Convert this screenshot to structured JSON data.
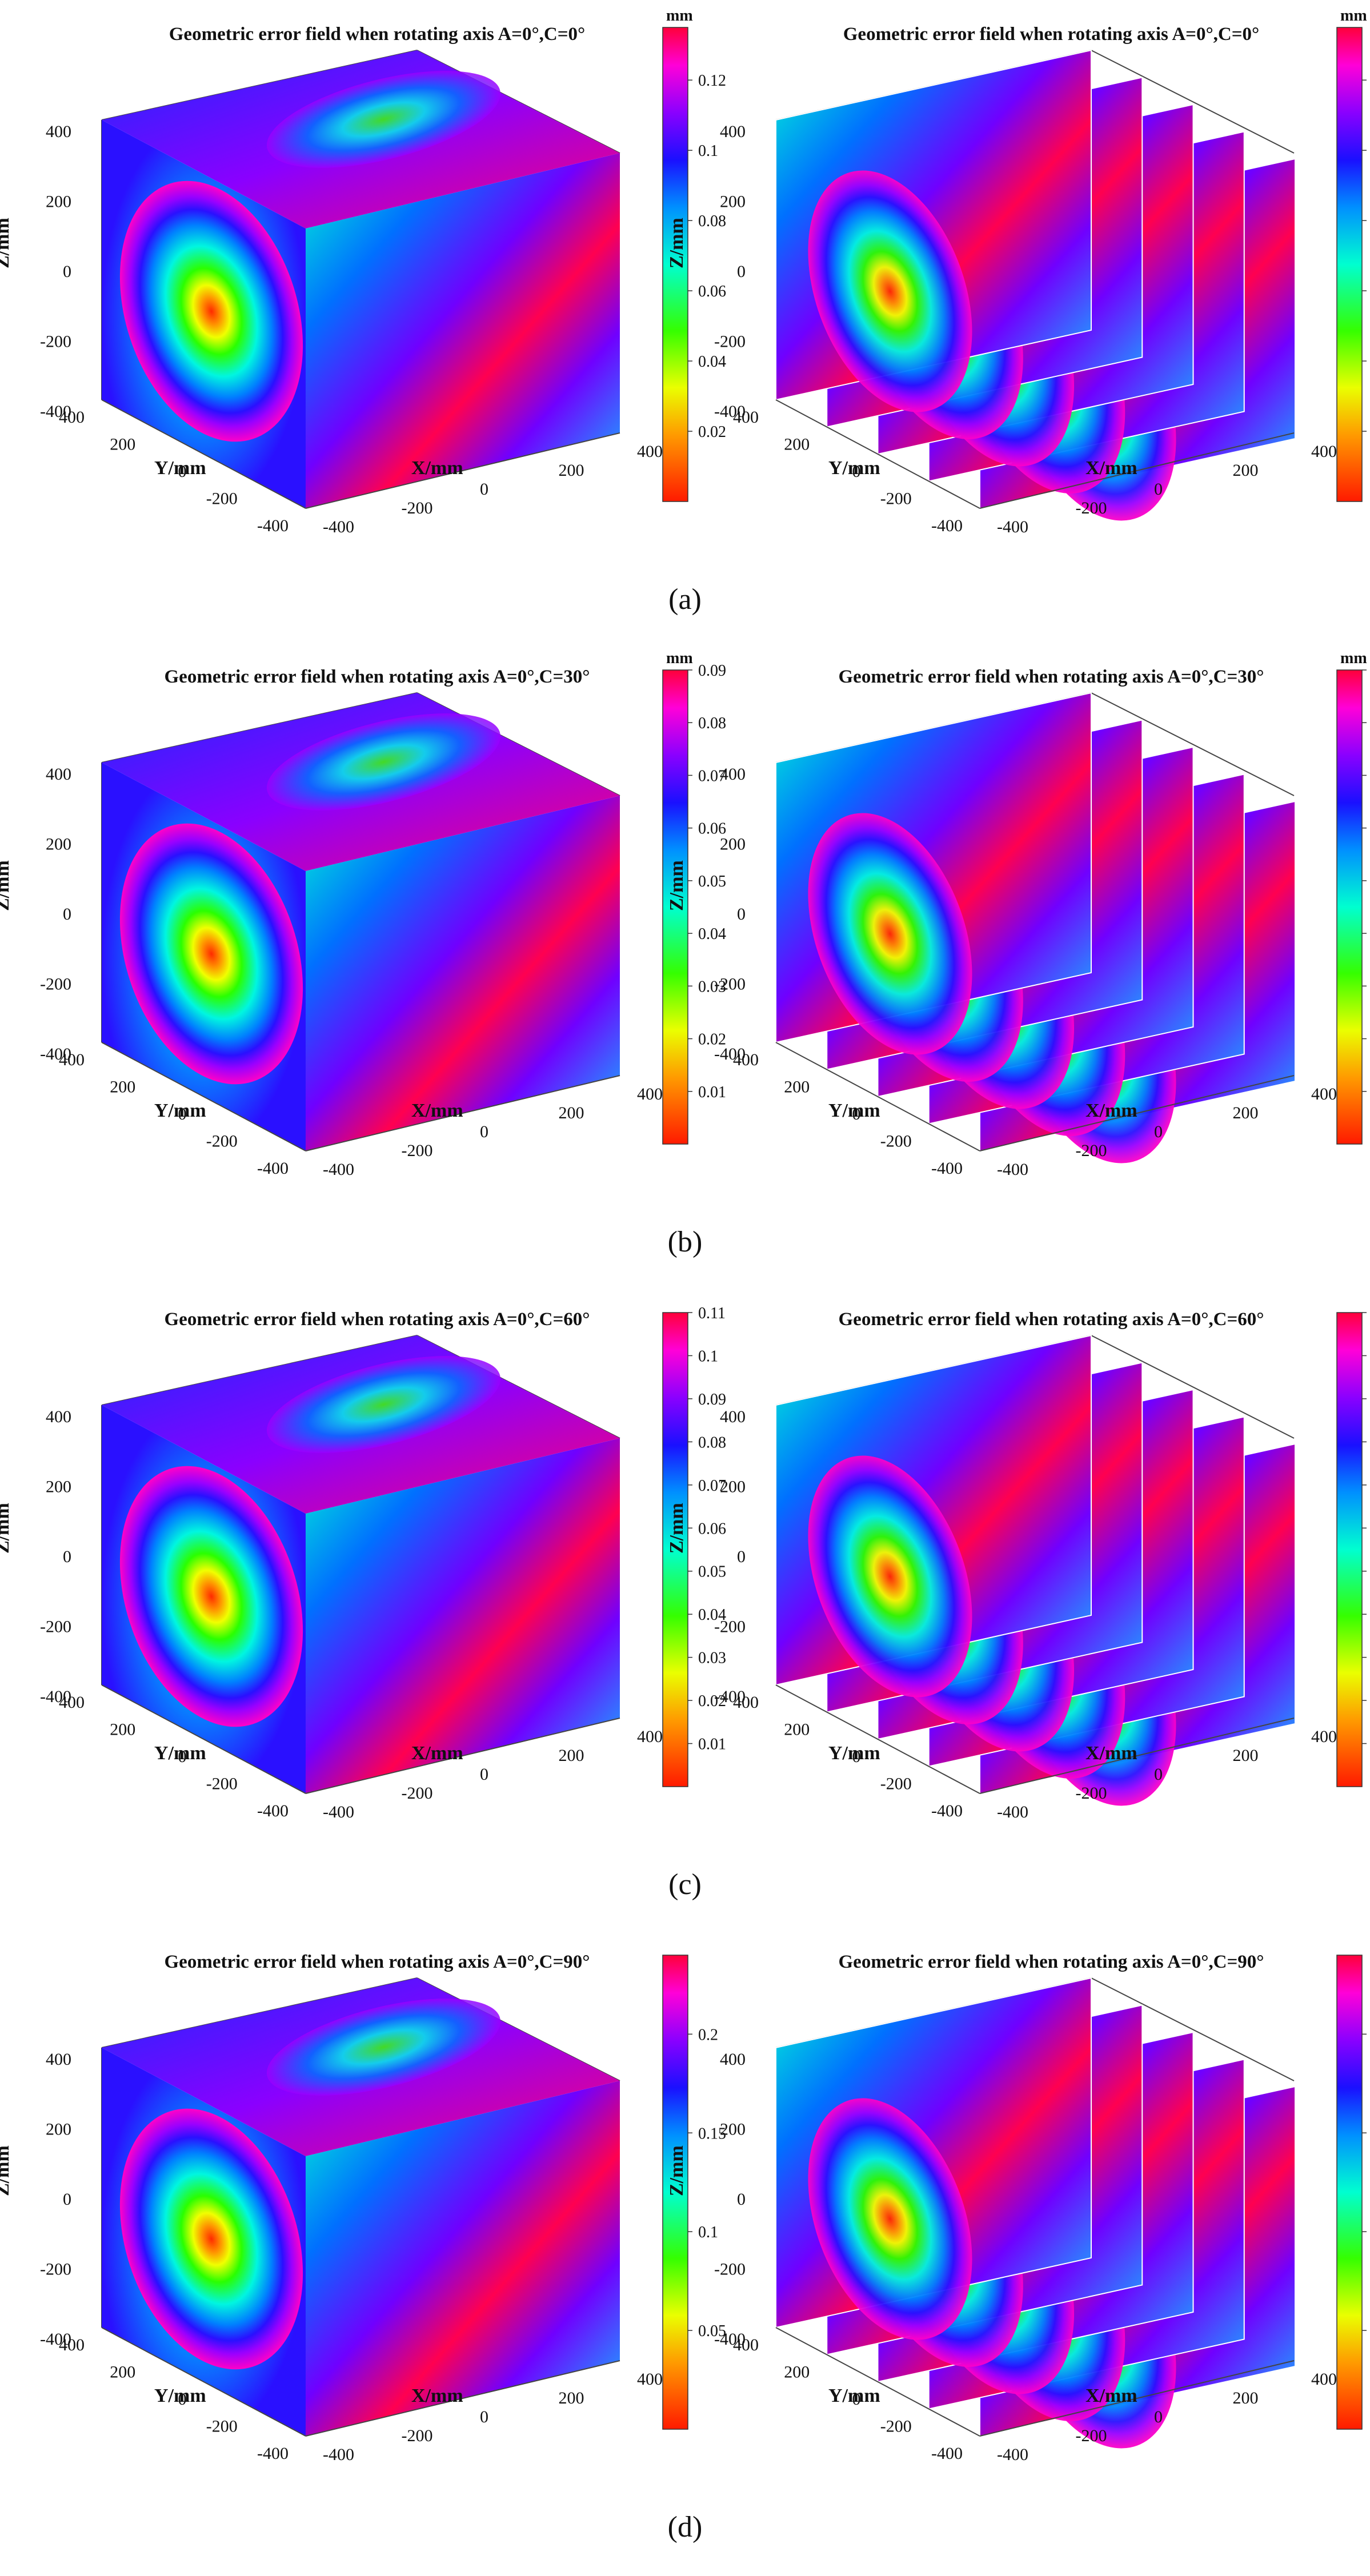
{
  "units": "mm",
  "axis_labels": {
    "x": "X/mm",
    "y": "Y/mm",
    "z": "Z/mm"
  },
  "ticks": {
    "x": [
      "-400",
      "-200",
      "0",
      "200",
      "400"
    ],
    "y": [
      "-400",
      "-200",
      "0",
      "200",
      "400"
    ],
    "z": [
      "-400",
      "-200",
      "0",
      "200",
      "400"
    ]
  },
  "rows": [
    {
      "sublabel": "(a)",
      "title": "Geometric error field when rotating axis A=0°,C=0°",
      "colorbar_ticks": [
        "0.02",
        "0.04",
        "0.06",
        "0.08",
        "0.1",
        "0.12"
      ],
      "colorbar_range": [
        0,
        0.135
      ]
    },
    {
      "sublabel": "(b)",
      "title": "Geometric error field when rotating axis A=0°,C=30°",
      "colorbar_ticks": [
        "0.01",
        "0.02",
        "0.03",
        "0.04",
        "0.05",
        "0.06",
        "0.07",
        "0.08",
        "0.09"
      ],
      "colorbar_range": [
        0,
        0.09
      ]
    },
    {
      "sublabel": "(c)",
      "title": "Geometric error field when rotating axis A=0°,C=60°",
      "colorbar_ticks": [
        "0.01",
        "0.02",
        "0.03",
        "0.04",
        "0.05",
        "0.06",
        "0.07",
        "0.08",
        "0.09",
        "0.1",
        "0.11"
      ],
      "colorbar_range": [
        0,
        0.11
      ]
    },
    {
      "sublabel": "(d)",
      "title": "Geometric error field when rotating axis A=0°,C=90°",
      "colorbar_ticks": [
        "0.05",
        "0.1",
        "0.15",
        "0.2"
      ],
      "colorbar_range": [
        0,
        0.24
      ]
    }
  ],
  "chart_data": [
    {
      "type": "heatmap",
      "view": "cube",
      "title": "Geometric error field when rotating axis A=0°,C=0°",
      "xlabel": "X/mm",
      "ylabel": "Y/mm",
      "zlabel": "Z/mm",
      "xlim": [
        -400,
        400
      ],
      "ylim": [
        -400,
        400
      ],
      "zlim": [
        -400,
        400
      ],
      "colorbar": {
        "unit": "mm",
        "min": 0,
        "max": 0.135
      }
    },
    {
      "type": "heatmap",
      "view": "slices",
      "title": "Geometric error field when rotating axis A=0°,C=0°",
      "xlabel": "X/mm",
      "ylabel": "Y/mm",
      "zlabel": "Z/mm",
      "xlim": [
        -400,
        400
      ],
      "ylim": [
        -400,
        400
      ],
      "zlim": [
        -400,
        400
      ],
      "colorbar": {
        "unit": "mm",
        "min": 0,
        "max": 0.135
      }
    },
    {
      "type": "heatmap",
      "view": "cube",
      "title": "Geometric error field when rotating axis A=0°,C=30°",
      "xlabel": "X/mm",
      "ylabel": "Y/mm",
      "zlabel": "Z/mm",
      "xlim": [
        -400,
        400
      ],
      "ylim": [
        -400,
        400
      ],
      "zlim": [
        -400,
        400
      ],
      "colorbar": {
        "unit": "mm",
        "min": 0,
        "max": 0.09
      }
    },
    {
      "type": "heatmap",
      "view": "slices",
      "title": "Geometric error field when rotating axis A=0°,C=30°",
      "xlabel": "X/mm",
      "ylabel": "Y/mm",
      "zlabel": "Z/mm",
      "xlim": [
        -400,
        400
      ],
      "ylim": [
        -400,
        400
      ],
      "zlim": [
        -400,
        400
      ],
      "colorbar": {
        "unit": "mm",
        "min": 0,
        "max": 0.09
      }
    },
    {
      "type": "heatmap",
      "view": "cube",
      "title": "Geometric error field when rotating axis A=0°,C=60°",
      "xlabel": "X/mm",
      "ylabel": "Y/mm",
      "zlabel": "Z/mm",
      "xlim": [
        -400,
        400
      ],
      "ylim": [
        -400,
        400
      ],
      "zlim": [
        -400,
        400
      ],
      "colorbar": {
        "unit": "mm",
        "min": 0,
        "max": 0.11
      }
    },
    {
      "type": "heatmap",
      "view": "slices",
      "title": "Geometric error field when rotating axis A=0°,C=60°",
      "xlabel": "X/mm",
      "ylabel": "Y/mm",
      "zlabel": "Z/mm",
      "xlim": [
        -400,
        400
      ],
      "ylim": [
        -400,
        400
      ],
      "zlim": [
        -400,
        400
      ],
      "colorbar": {
        "unit": "mm",
        "min": 0,
        "max": 0.11
      }
    },
    {
      "type": "heatmap",
      "view": "cube",
      "title": "Geometric error field when rotating axis A=0°,C=90°",
      "xlabel": "X/mm",
      "ylabel": "Y/mm",
      "zlabel": "Z/mm",
      "xlim": [
        -400,
        400
      ],
      "ylim": [
        -400,
        400
      ],
      "zlim": [
        -400,
        400
      ],
      "colorbar": {
        "unit": "mm",
        "min": 0,
        "max": 0.24
      }
    },
    {
      "type": "heatmap",
      "view": "slices",
      "title": "Geometric error field when rotating axis A=0°,C=90°",
      "xlabel": "X/mm",
      "ylabel": "Y/mm",
      "zlabel": "Z/mm",
      "xlim": [
        -400,
        400
      ],
      "ylim": [
        -400,
        400
      ],
      "zlim": [
        -400,
        400
      ],
      "colorbar": {
        "unit": "mm",
        "min": 0,
        "max": 0.24
      }
    }
  ]
}
